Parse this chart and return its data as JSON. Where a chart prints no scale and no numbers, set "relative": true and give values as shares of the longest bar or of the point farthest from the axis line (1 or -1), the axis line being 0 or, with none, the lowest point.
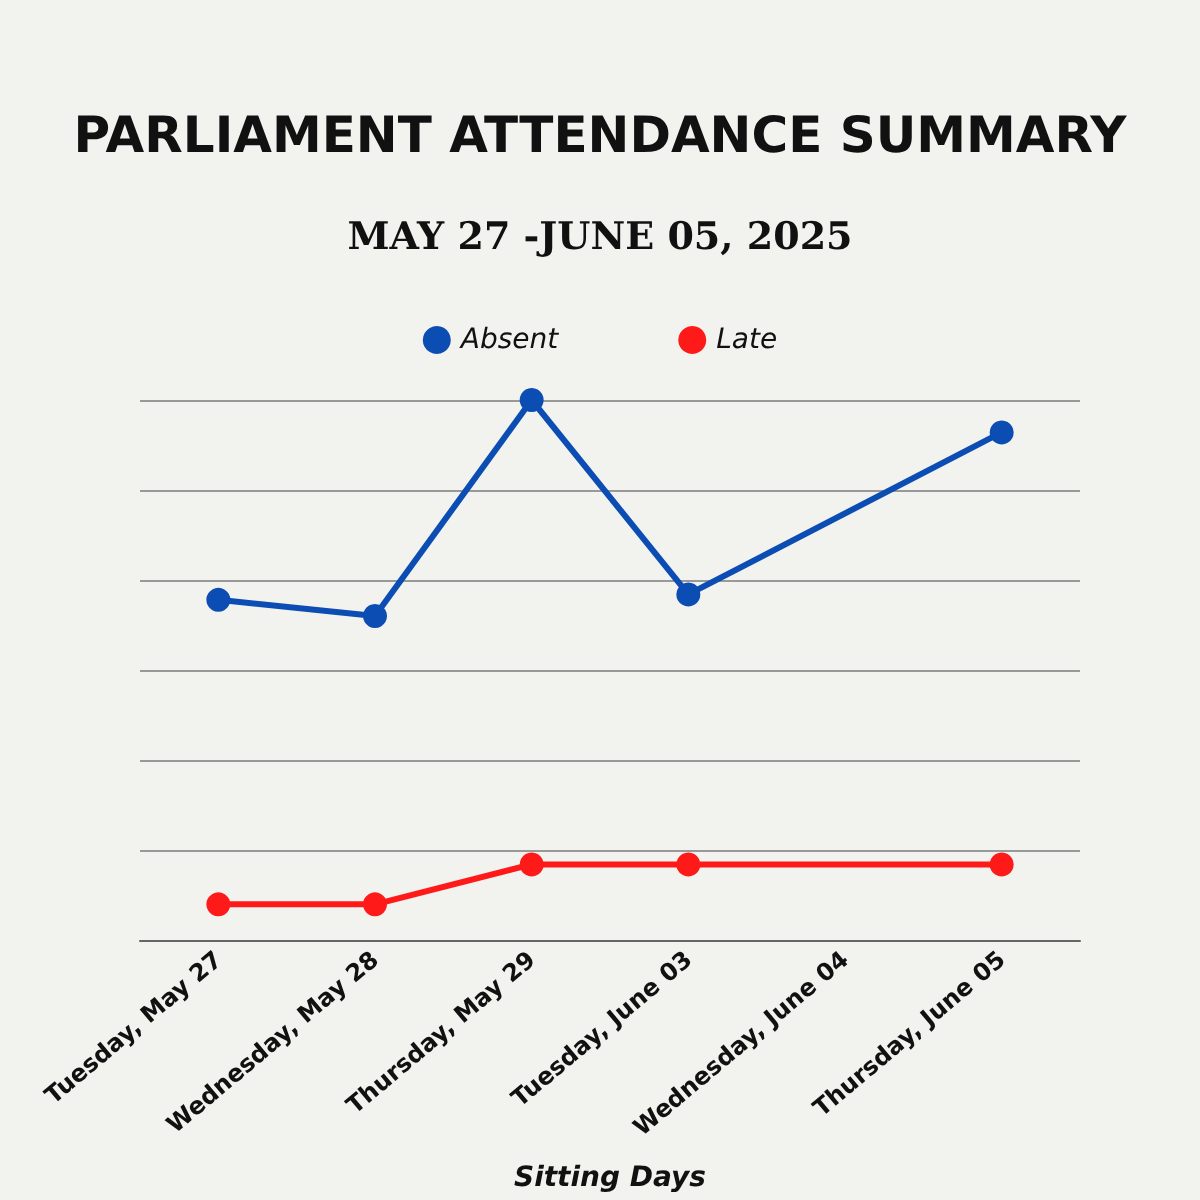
{
  "chart_data": {
    "type": "line",
    "title": "PARLIAMENT ATTENDANCE SUMMARY",
    "subtitle": "MAY 27 -JUNE 05, 2025",
    "xlabel": "Sitting Days",
    "categories": [
      "Tuesday, May 27",
      "Wednesday, May 28",
      "Thursday, May 29",
      "Tuesday, June 03",
      "Wednesday, June 04",
      "Thursday, June 05"
    ],
    "relative": true,
    "series": [
      {
        "name": "Absent",
        "color": "#0b4db3",
        "values": [
          0.63,
          0.6,
          1,
          0.64,
          null,
          0.94
        ]
      },
      {
        "name": "Late",
        "color": "#ff1a1a",
        "values": [
          0.066,
          0.066,
          0.14,
          0.14,
          null,
          0.14
        ]
      }
    ],
    "legend": "top",
    "grid": "y",
    "marker": "circle",
    "line_style": "solid"
  }
}
